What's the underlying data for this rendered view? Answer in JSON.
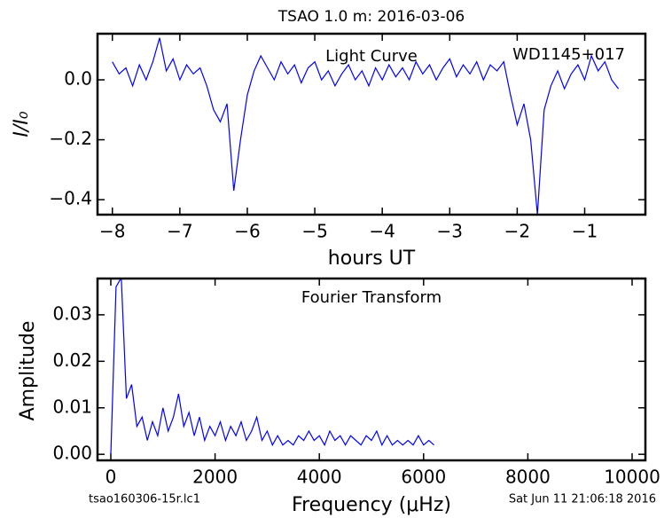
{
  "title": "TSAO 1.0 m:  2016-03-06",
  "footer": [
    "tsao160306-15r.lc1",
    "Sat Jun 11 21:06:18 2016"
  ],
  "chart_data": [
    {
      "type": "line",
      "xlabel": "hours UT",
      "ylabel": "I/I₀",
      "annotations": [
        "Light Curve",
        "WD1145+017"
      ],
      "color": "#0000ff",
      "x": [
        -8.0,
        -7.9,
        -7.8,
        -7.7,
        -7.6,
        -7.5,
        -7.4,
        -7.3,
        -7.2,
        -7.1,
        -7.0,
        -6.9,
        -6.8,
        -6.7,
        -6.6,
        -6.5,
        -6.4,
        -6.3,
        -6.2,
        -6.1,
        -6.0,
        -5.9,
        -5.8,
        -5.7,
        -5.6,
        -5.5,
        -5.4,
        -5.3,
        -5.2,
        -5.1,
        -5.0,
        -4.9,
        -4.8,
        -4.7,
        -4.6,
        -4.5,
        -4.4,
        -4.3,
        -4.2,
        -4.1,
        -4.0,
        -3.9,
        -3.8,
        -3.7,
        -3.6,
        -3.5,
        -3.4,
        -3.3,
        -3.2,
        -3.1,
        -3.0,
        -2.9,
        -2.8,
        -2.7,
        -2.6,
        -2.5,
        -2.4,
        -2.3,
        -2.2,
        -2.1,
        -2.0,
        -1.9,
        -1.8,
        -1.7,
        -1.6,
        -1.5,
        -1.4,
        -1.3,
        -1.2,
        -1.1,
        -1.0,
        -0.9,
        -0.8,
        -0.7,
        -0.6,
        -0.5
      ],
      "values": [
        0.06,
        0.02,
        0.04,
        -0.02,
        0.05,
        0.0,
        0.06,
        0.14,
        0.03,
        0.07,
        0.0,
        0.05,
        0.02,
        0.04,
        -0.02,
        -0.1,
        -0.14,
        -0.08,
        -0.37,
        -0.2,
        -0.05,
        0.03,
        0.08,
        0.04,
        0.0,
        0.06,
        0.02,
        0.05,
        -0.01,
        0.04,
        0.06,
        0.0,
        0.03,
        -0.02,
        0.02,
        0.05,
        0.0,
        0.03,
        -0.02,
        0.04,
        0.0,
        0.05,
        0.01,
        0.04,
        0.0,
        0.06,
        0.02,
        0.05,
        0.0,
        0.04,
        0.07,
        0.01,
        0.05,
        0.02,
        0.06,
        0.0,
        0.05,
        0.03,
        0.06,
        -0.05,
        -0.15,
        -0.08,
        -0.2,
        -0.45,
        -0.1,
        -0.02,
        0.03,
        -0.03,
        0.02,
        0.05,
        0.0,
        0.08,
        0.03,
        0.06,
        0.0,
        -0.03
      ],
      "xlim": [
        -8.22,
        -0.1
      ],
      "xticks": [
        {
          "value": -8,
          "label": "−8"
        },
        {
          "value": -7,
          "label": "−7"
        },
        {
          "value": -6,
          "label": "−6"
        },
        {
          "value": -5,
          "label": "−5"
        },
        {
          "value": -4,
          "label": "−4"
        },
        {
          "value": -3,
          "label": "−3"
        },
        {
          "value": -2,
          "label": "−2"
        },
        {
          "value": -1,
          "label": "−1"
        }
      ],
      "ylim": [
        -0.45,
        0.154
      ],
      "yticks": [
        {
          "value": -0.4,
          "label": "−0.4"
        },
        {
          "value": -0.2,
          "label": "−0.2"
        },
        {
          "value": 0,
          "label": "0.0"
        }
      ]
    },
    {
      "type": "line",
      "xlabel": "Frequency (μHz)",
      "ylabel": "Amplitude",
      "annotations": [
        "Fourier Transform"
      ],
      "color": "#0000ff",
      "x": [
        0,
        100,
        200,
        300,
        400,
        500,
        600,
        700,
        800,
        900,
        1000,
        1100,
        1200,
        1300,
        1400,
        1500,
        1600,
        1700,
        1800,
        1900,
        2000,
        2100,
        2200,
        2300,
        2400,
        2500,
        2600,
        2700,
        2800,
        2900,
        3000,
        3100,
        3200,
        3300,
        3400,
        3500,
        3600,
        3700,
        3800,
        3900,
        4000,
        4100,
        4200,
        4300,
        4400,
        4500,
        4600,
        4700,
        4800,
        4900,
        5000,
        5100,
        5200,
        5300,
        5400,
        5500,
        5600,
        5700,
        5800,
        5900,
        6000,
        6100,
        6200
      ],
      "values": [
        0.0,
        0.036,
        0.038,
        0.012,
        0.015,
        0.006,
        0.008,
        0.003,
        0.007,
        0.004,
        0.01,
        0.005,
        0.008,
        0.013,
        0.006,
        0.009,
        0.004,
        0.008,
        0.003,
        0.006,
        0.004,
        0.007,
        0.003,
        0.006,
        0.004,
        0.007,
        0.003,
        0.005,
        0.008,
        0.003,
        0.005,
        0.002,
        0.004,
        0.002,
        0.003,
        0.002,
        0.004,
        0.003,
        0.005,
        0.003,
        0.004,
        0.002,
        0.005,
        0.003,
        0.004,
        0.002,
        0.004,
        0.003,
        0.002,
        0.004,
        0.003,
        0.005,
        0.002,
        0.004,
        0.002,
        0.003,
        0.002,
        0.003,
        0.002,
        0.004,
        0.002,
        0.003,
        0.002
      ],
      "xlim": [
        -255,
        10255
      ],
      "xticks": [
        0,
        2000,
        4000,
        6000,
        8000,
        10000
      ],
      "ylim": [
        -0.0013,
        0.0378
      ],
      "yticks": [
        {
          "value": 0,
          "label": "0.00"
        },
        {
          "value": 0.01,
          "label": "0.01"
        },
        {
          "value": 0.02,
          "label": "0.02"
        },
        {
          "value": 0.03,
          "label": "0.03"
        }
      ]
    }
  ]
}
